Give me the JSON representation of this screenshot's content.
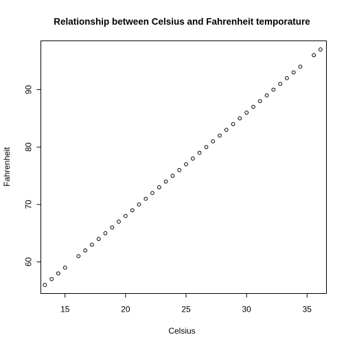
{
  "chart_data": {
    "type": "scatter",
    "title": "Relationship between Celsius and Fahrenheit temporature",
    "xlabel": "Celsius",
    "ylabel": "Fahrenheit",
    "xlim": [
      13.0,
      36.6
    ],
    "ylim": [
      54.5,
      98.5
    ],
    "xticks": [
      15,
      20,
      25,
      30,
      35
    ],
    "yticks": [
      60,
      70,
      80,
      90
    ],
    "grid": false,
    "legend": "none",
    "marker": "open-circle",
    "points": [
      {
        "x": 13.33,
        "y": 56
      },
      {
        "x": 13.89,
        "y": 57
      },
      {
        "x": 14.44,
        "y": 58
      },
      {
        "x": 15.0,
        "y": 59
      },
      {
        "x": 16.11,
        "y": 61
      },
      {
        "x": 16.67,
        "y": 62
      },
      {
        "x": 17.22,
        "y": 63
      },
      {
        "x": 17.78,
        "y": 64
      },
      {
        "x": 18.33,
        "y": 65
      },
      {
        "x": 18.89,
        "y": 66
      },
      {
        "x": 19.44,
        "y": 67
      },
      {
        "x": 20.0,
        "y": 68
      },
      {
        "x": 20.56,
        "y": 69
      },
      {
        "x": 21.11,
        "y": 70
      },
      {
        "x": 21.67,
        "y": 71
      },
      {
        "x": 22.22,
        "y": 72
      },
      {
        "x": 22.78,
        "y": 73
      },
      {
        "x": 23.33,
        "y": 74
      },
      {
        "x": 23.89,
        "y": 75
      },
      {
        "x": 24.44,
        "y": 76
      },
      {
        "x": 25.0,
        "y": 77
      },
      {
        "x": 25.56,
        "y": 78
      },
      {
        "x": 26.11,
        "y": 79
      },
      {
        "x": 26.67,
        "y": 80
      },
      {
        "x": 27.22,
        "y": 81
      },
      {
        "x": 27.78,
        "y": 82
      },
      {
        "x": 28.33,
        "y": 83
      },
      {
        "x": 28.89,
        "y": 84
      },
      {
        "x": 29.44,
        "y": 85
      },
      {
        "x": 30.0,
        "y": 86
      },
      {
        "x": 30.56,
        "y": 87
      },
      {
        "x": 31.11,
        "y": 88
      },
      {
        "x": 31.67,
        "y": 89
      },
      {
        "x": 32.22,
        "y": 90
      },
      {
        "x": 32.78,
        "y": 91
      },
      {
        "x": 33.33,
        "y": 92
      },
      {
        "x": 33.89,
        "y": 93
      },
      {
        "x": 34.44,
        "y": 94
      },
      {
        "x": 35.56,
        "y": 96
      },
      {
        "x": 36.11,
        "y": 97
      }
    ]
  }
}
